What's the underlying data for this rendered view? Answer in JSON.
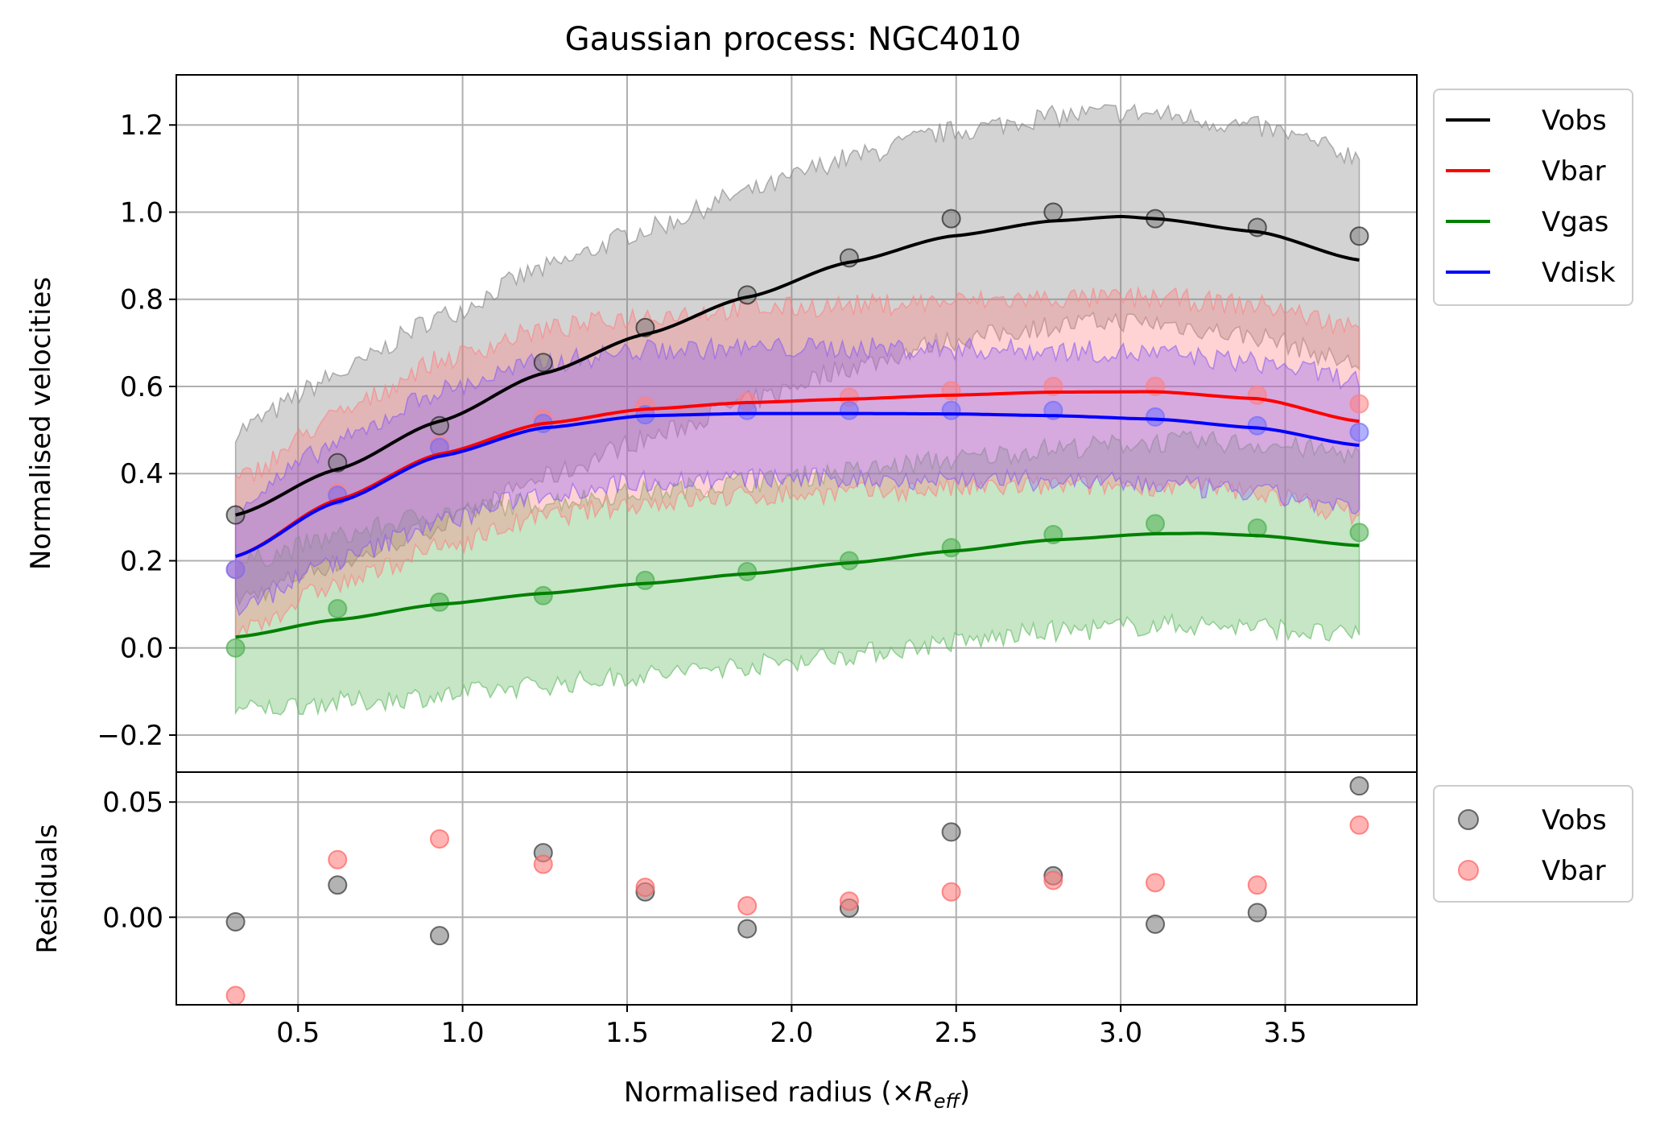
{
  "title": "Gaussian process: NGC4010",
  "chart_data": [
    {
      "type": "line",
      "panel": "main",
      "title": "Gaussian process: NGC4010",
      "xlabel": "Normalised radius (×R_eff)",
      "xlabel_main": "Normalised radius (×",
      "xlabel_italic": "R",
      "xlabel_sub": "eff",
      "xlabel_close": ")",
      "ylabel": "Normalised velocities",
      "xlim": [
        0.13,
        3.9
      ],
      "ylim": [
        -0.285,
        1.315
      ],
      "grid": true,
      "xticks": [
        0.5,
        1.0,
        1.5,
        2.0,
        2.5,
        3.0,
        3.5
      ],
      "xtick_labels": [
        "0.5",
        "1.0",
        "1.5",
        "2.0",
        "2.5",
        "3.0",
        "3.5"
      ],
      "yticks": [
        -0.2,
        0.0,
        0.2,
        0.4,
        0.6,
        0.8,
        1.0,
        1.2
      ],
      "ytick_labels": [
        "−0.2",
        "0.0",
        "0.2",
        "0.4",
        "0.6",
        "0.8",
        "1.0",
        "1.2"
      ],
      "legend_position": "outside upper right",
      "x": [
        0.31,
        0.62,
        0.93,
        1.245,
        1.555,
        1.865,
        2.175,
        2.485,
        2.795,
        3.105,
        3.415,
        3.725
      ],
      "series": [
        {
          "name": "Vobs",
          "color": "#000000",
          "band_color": "#808080",
          "points": [
            0.305,
            0.425,
            0.51,
            0.655,
            0.735,
            0.81,
            0.895,
            0.985,
            1.0,
            0.985,
            0.965,
            0.945
          ],
          "fit": [
            [
              0.31,
              0.305
            ],
            [
              0.62,
              0.41
            ],
            [
              0.93,
              0.52
            ],
            [
              1.245,
              0.63
            ],
            [
              1.555,
              0.72
            ],
            [
              1.865,
              0.805
            ],
            [
              2.175,
              0.885
            ],
            [
              2.485,
              0.945
            ],
            [
              2.795,
              0.98
            ],
            [
              3.0,
              0.99
            ],
            [
              3.105,
              0.985
            ],
            [
              3.415,
              0.955
            ],
            [
              3.725,
              0.89
            ]
          ],
          "band_half_width": 0.24
        },
        {
          "name": "Vbar",
          "color": "#ff0000",
          "band_color": "#ff8080",
          "points": [
            0.18,
            0.355,
            0.465,
            0.525,
            0.555,
            0.565,
            0.575,
            0.59,
            0.6,
            0.6,
            0.58,
            0.56
          ],
          "fit": [
            [
              0.31,
              0.21
            ],
            [
              0.62,
              0.34
            ],
            [
              0.93,
              0.445
            ],
            [
              1.245,
              0.515
            ],
            [
              1.555,
              0.548
            ],
            [
              1.865,
              0.563
            ],
            [
              2.175,
              0.571
            ],
            [
              2.485,
              0.58
            ],
            [
              2.795,
              0.587
            ],
            [
              3.105,
              0.588
            ],
            [
              3.415,
              0.572
            ],
            [
              3.725,
              0.52
            ]
          ],
          "band_half_width": 0.215
        },
        {
          "name": "Vgas",
          "color": "#008000",
          "band_color": "#5cb85c",
          "points": [
            0.0,
            0.09,
            0.105,
            0.12,
            0.155,
            0.175,
            0.2,
            0.23,
            0.26,
            0.285,
            0.275,
            0.265
          ],
          "fit": [
            [
              0.31,
              0.025
            ],
            [
              0.62,
              0.065
            ],
            [
              0.93,
              0.1
            ],
            [
              1.245,
              0.125
            ],
            [
              1.555,
              0.148
            ],
            [
              1.865,
              0.17
            ],
            [
              2.175,
              0.195
            ],
            [
              2.485,
              0.222
            ],
            [
              2.795,
              0.248
            ],
            [
              3.105,
              0.262
            ],
            [
              3.25,
              0.263
            ],
            [
              3.415,
              0.258
            ],
            [
              3.725,
              0.235
            ]
          ],
          "band_half_width": 0.21
        },
        {
          "name": "Vdisk",
          "color": "#0000ff",
          "band_color": "#8a5cf5",
          "points": [
            0.18,
            0.35,
            0.46,
            0.515,
            0.535,
            0.545,
            0.545,
            0.545,
            0.545,
            0.53,
            0.51,
            0.495
          ],
          "fit": [
            [
              0.31,
              0.21
            ],
            [
              0.62,
              0.335
            ],
            [
              0.93,
              0.44
            ],
            [
              1.245,
              0.505
            ],
            [
              1.555,
              0.533
            ],
            [
              1.865,
              0.538
            ],
            [
              2.175,
              0.538
            ],
            [
              2.485,
              0.537
            ],
            [
              2.795,
              0.533
            ],
            [
              3.105,
              0.525
            ],
            [
              3.415,
              0.505
            ],
            [
              3.725,
              0.465
            ]
          ],
          "band_half_width": 0.15
        }
      ]
    },
    {
      "type": "scatter",
      "panel": "residuals",
      "ylabel": "Residuals",
      "xlim": [
        0.13,
        3.9
      ],
      "ylim": [
        -0.038,
        0.063
      ],
      "grid": true,
      "yticks": [
        0.0,
        0.05
      ],
      "ytick_labels": [
        "0.00",
        "0.05"
      ],
      "legend_position": "outside upper right",
      "x": [
        0.31,
        0.62,
        0.93,
        1.245,
        1.555,
        1.865,
        2.175,
        2.485,
        2.795,
        3.105,
        3.415,
        3.725
      ],
      "series": [
        {
          "name": "Vobs",
          "color": "#808080",
          "values": [
            -0.002,
            0.014,
            -0.008,
            0.028,
            0.011,
            -0.005,
            0.004,
            0.037,
            0.018,
            -0.003,
            0.002,
            0.057
          ]
        },
        {
          "name": "Vbar",
          "color": "#ff8080",
          "values": [
            -0.034,
            0.025,
            0.034,
            0.023,
            0.013,
            0.005,
            0.007,
            0.011,
            0.016,
            0.015,
            0.014,
            0.04
          ]
        }
      ]
    }
  ]
}
